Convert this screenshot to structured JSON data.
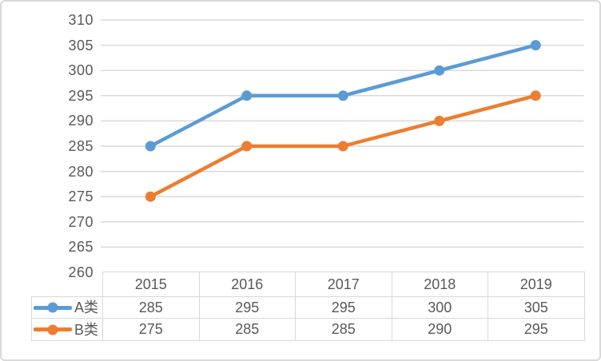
{
  "chart_data": {
    "type": "line",
    "categories": [
      "2015",
      "2016",
      "2017",
      "2018",
      "2019"
    ],
    "series": [
      {
        "name": "A类",
        "values": [
          285,
          295,
          295,
          300,
          305
        ],
        "color": "#5b9bd5"
      },
      {
        "name": "B类",
        "values": [
          275,
          285,
          285,
          290,
          295
        ],
        "color": "#ed7d31"
      }
    ],
    "title": "",
    "xlabel": "",
    "ylabel": "",
    "ylim": [
      260,
      310
    ],
    "ytick_step": 5,
    "yticks": [
      "310",
      "305",
      "300",
      "295",
      "290",
      "285",
      "280",
      "275",
      "270",
      "265",
      "260"
    ],
    "grid": true,
    "legend_position": "data-table-left",
    "data_table_shown": true,
    "marker": "circle",
    "colors": {
      "gridline": "#d9d9d9",
      "axis_text": "#595959",
      "table_text": "#595959",
      "table_border": "#d9d9d9",
      "frame_border": "#d9d9d9",
      "background": "#ffffff"
    }
  }
}
